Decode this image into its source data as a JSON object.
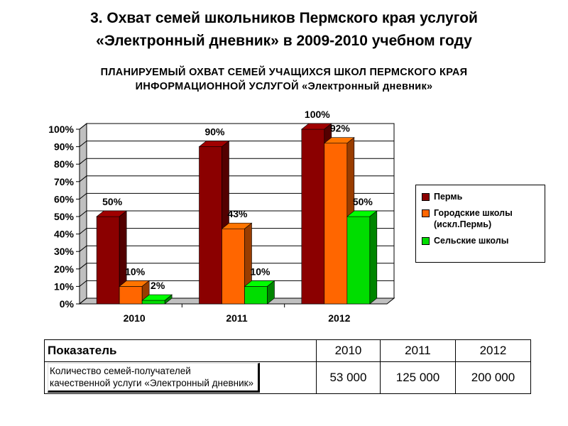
{
  "slide_title": "3. Охват семей школьников Пермского края услугой\n«Электронный дневник» в 2009-2010 учебном году",
  "chart_data": {
    "type": "bar",
    "title": "ПЛАНИРУЕМЫЙ ОХВАТ СЕМЕЙ УЧАЩИХСЯ ШКОЛ ПЕРМСКОГО КРАЯ\nИНФОРМАЦИОННОЙ УСЛУГОЙ «Электронный дневник»",
    "categories": [
      "2010",
      "2011",
      "2012"
    ],
    "series": [
      {
        "name": "Пермь",
        "values": [
          50,
          90,
          100
        ],
        "labels": [
          "50%",
          "90%",
          "100%"
        ],
        "color": "#8B0000"
      },
      {
        "name": "Городские школы\n(искл.Пермь)",
        "values": [
          10,
          43,
          92
        ],
        "labels": [
          "10%",
          "43%",
          "92%"
        ],
        "color": "#FF6600"
      },
      {
        "name": "Сельские школы",
        "values": [
          2,
          10,
          50
        ],
        "labels": [
          "2%",
          "10%",
          "50%"
        ],
        "color": "#00DD00"
      }
    ],
    "y_ticks": [
      "0%",
      "10%",
      "20%",
      "30%",
      "40%",
      "50%",
      "60%",
      "70%",
      "80%",
      "90%",
      "100%"
    ],
    "ylim": [
      0,
      100
    ],
    "grid": true,
    "legend_position": "right",
    "three_d": true
  },
  "table": {
    "header": {
      "label": "Показатель",
      "years": [
        "2010",
        "2011",
        "2012"
      ]
    },
    "rows": [
      {
        "label": "Количество семей-получателей\nкачественной услуги «Электронный дневник»",
        "values": [
          "53 000",
          "125 000",
          "200 000"
        ]
      }
    ]
  }
}
